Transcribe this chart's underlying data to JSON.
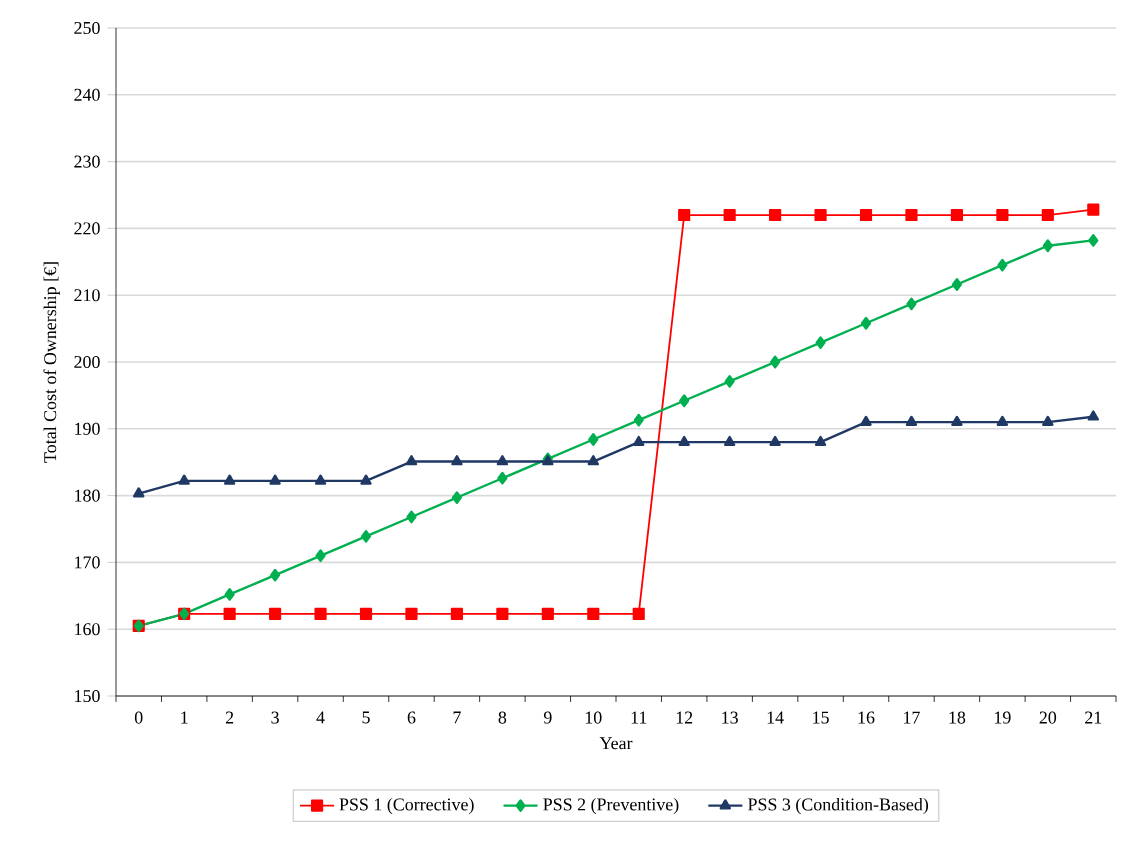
{
  "chart_data": {
    "type": "line",
    "xlabel": "Year",
    "ylabel": "Total Cost of Ownership [€]",
    "categories": [
      "0",
      "1",
      "2",
      "3",
      "4",
      "5",
      "6",
      "7",
      "8",
      "9",
      "10",
      "11",
      "12",
      "13",
      "14",
      "15",
      "16",
      "17",
      "18",
      "19",
      "20",
      "21"
    ],
    "ylim": [
      150,
      250
    ],
    "yticks": [
      150,
      160,
      170,
      180,
      190,
      200,
      210,
      220,
      230,
      240,
      250
    ],
    "grid": "y",
    "legend": "bottom",
    "series": [
      {
        "name": "PSS 1 (Corrective)",
        "color": "#ff0000",
        "marker": "square",
        "values": [
          160.5,
          162.3,
          162.3,
          162.3,
          162.3,
          162.3,
          162.3,
          162.3,
          162.3,
          162.3,
          162.3,
          162.3,
          222,
          222,
          222,
          222,
          222,
          222,
          222,
          222,
          222,
          222.8
        ]
      },
      {
        "name": "PSS 2 (Preventive)",
        "color": "#00b050",
        "marker": "diamond",
        "values": [
          160.5,
          162.3,
          165.2,
          168.1,
          171,
          173.9,
          176.8,
          179.7,
          182.6,
          185.5,
          188.4,
          191.3,
          194.2,
          197.1,
          200,
          202.9,
          205.8,
          208.7,
          211.6,
          214.5,
          217.4,
          218.2
        ]
      },
      {
        "name": "PSS 3 (Condition-Based)",
        "color": "#1f3864",
        "marker": "triangle",
        "values": [
          180.3,
          182.2,
          182.2,
          182.2,
          182.2,
          182.2,
          185.1,
          185.1,
          185.1,
          185.1,
          185.1,
          188,
          188,
          188,
          188,
          188,
          191,
          191,
          191,
          191,
          191,
          191.8
        ]
      }
    ]
  }
}
